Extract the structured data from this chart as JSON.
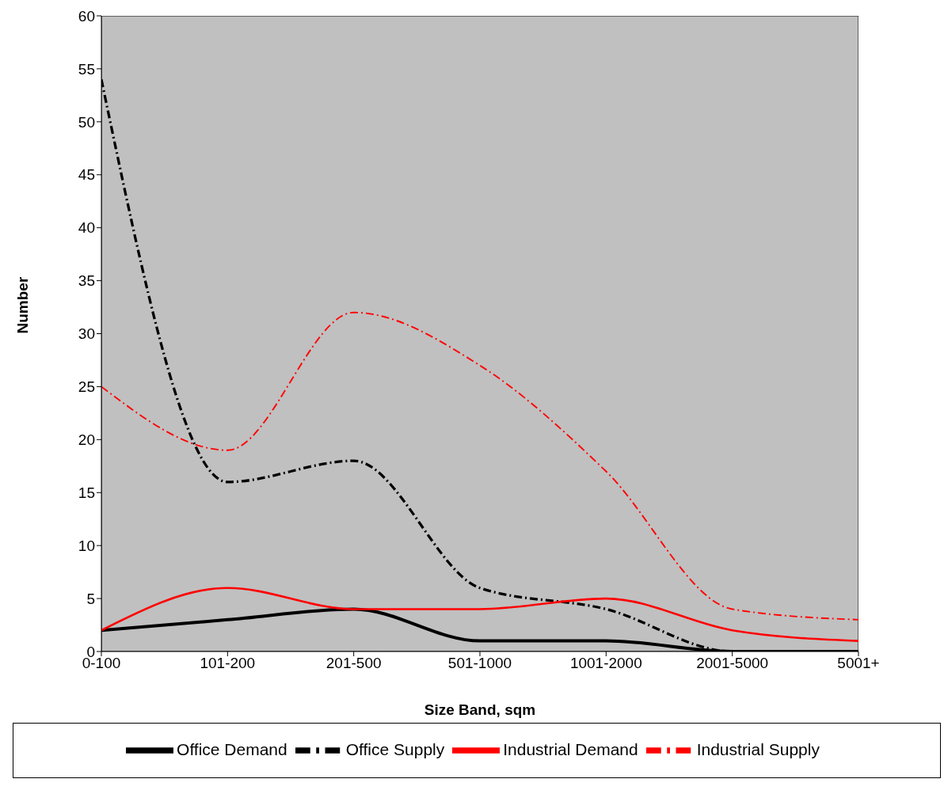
{
  "chart_data": {
    "type": "line",
    "xlabel": "Size Band, sqm",
    "ylabel": "Number",
    "categories": [
      "0-100",
      "101-200",
      "201-500",
      "501-1000",
      "1001-2000",
      "2001-5000",
      "5001+"
    ],
    "series": [
      {
        "name": "Office Demand",
        "color": "#000000",
        "line_style": "solid",
        "values": [
          2,
          3,
          4,
          1,
          1,
          0,
          0
        ]
      },
      {
        "name": "Office Supply",
        "color": "#000000",
        "line_style": "dashed",
        "values": [
          54,
          16,
          18,
          6,
          4,
          0,
          0
        ]
      },
      {
        "name": "Industrial Demand",
        "color": "#ff0000",
        "line_style": "solid",
        "values": [
          2,
          6,
          4,
          4,
          5,
          2,
          1
        ]
      },
      {
        "name": "Industrial Supply",
        "color": "#ff0000",
        "line_style": "dashed",
        "values": [
          25,
          19,
          32,
          27,
          17,
          4,
          3
        ]
      }
    ],
    "ylim": [
      0,
      60
    ],
    "yticks": [
      0,
      5,
      10,
      15,
      20,
      25,
      30,
      35,
      40,
      45,
      50,
      55,
      60
    ],
    "legend": "bottom",
    "marker": "none"
  }
}
